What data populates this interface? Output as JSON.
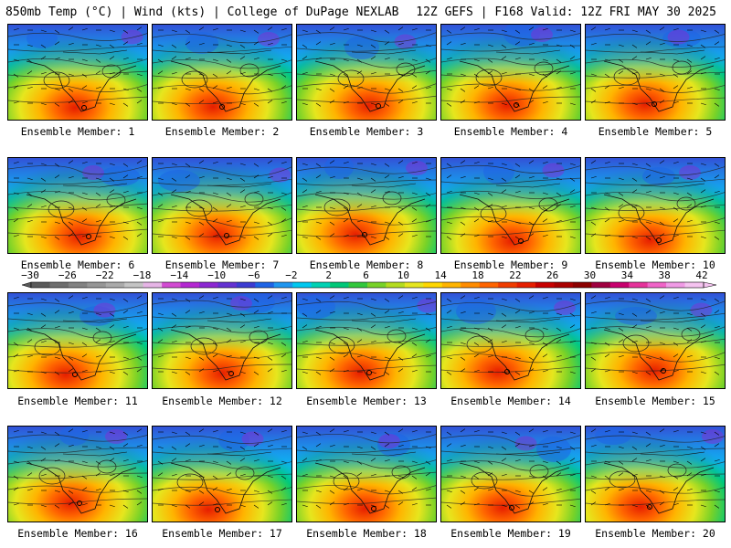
{
  "header": {
    "title_left": "850mb Temp (°C) | Wind (kts) | College of DuPage NEXLAB",
    "title_right": "12Z GEFS | F168 Valid: 12Z FRI MAY 30 2025"
  },
  "panels": [
    {
      "label": "Ensemble Member: 1"
    },
    {
      "label": "Ensemble Member: 2"
    },
    {
      "label": "Ensemble Member: 3"
    },
    {
      "label": "Ensemble Member: 4"
    },
    {
      "label": "Ensemble Member: 5"
    },
    {
      "label": "Ensemble Member: 6"
    },
    {
      "label": "Ensemble Member: 7"
    },
    {
      "label": "Ensemble Member: 8"
    },
    {
      "label": "Ensemble Member: 9"
    },
    {
      "label": "Ensemble Member: 10"
    },
    {
      "label": "Ensemble Member: 11"
    },
    {
      "label": "Ensemble Member: 12"
    },
    {
      "label": "Ensemble Member: 13"
    },
    {
      "label": "Ensemble Member: 14"
    },
    {
      "label": "Ensemble Member: 15"
    },
    {
      "label": "Ensemble Member: 16"
    },
    {
      "label": "Ensemble Member: 17"
    },
    {
      "label": "Ensemble Member: 18"
    },
    {
      "label": "Ensemble Member: 19"
    },
    {
      "label": "Ensemble Member: 20"
    }
  ],
  "colorbar": {
    "labels": [
      "−30",
      "−26",
      "−22",
      "−18",
      "−14",
      "−10",
      "−6",
      "−2",
      "2",
      "6",
      "10",
      "14",
      "18",
      "22",
      "26",
      "30",
      "34",
      "38",
      "42"
    ],
    "colors": [
      "#5a5a5a",
      "#6e6e6e",
      "#828282",
      "#969696",
      "#aaaaaa",
      "#c4c4c4",
      "#e6b4e6",
      "#d24bd2",
      "#b428d2",
      "#8c28d2",
      "#6432d2",
      "#3c3cd2",
      "#1e64e6",
      "#1e96f0",
      "#00c8f0",
      "#00d2b4",
      "#00c878",
      "#32c83c",
      "#78d228",
      "#b4dc1e",
      "#e6e61e",
      "#ffd700",
      "#ffb400",
      "#ff8c00",
      "#ff6400",
      "#f03c00",
      "#e61e00",
      "#c80000",
      "#aa0000",
      "#8c0000",
      "#a00040",
      "#c8006e",
      "#e6329b",
      "#f064c8",
      "#f09be6",
      "#f5c3f0"
    ]
  }
}
